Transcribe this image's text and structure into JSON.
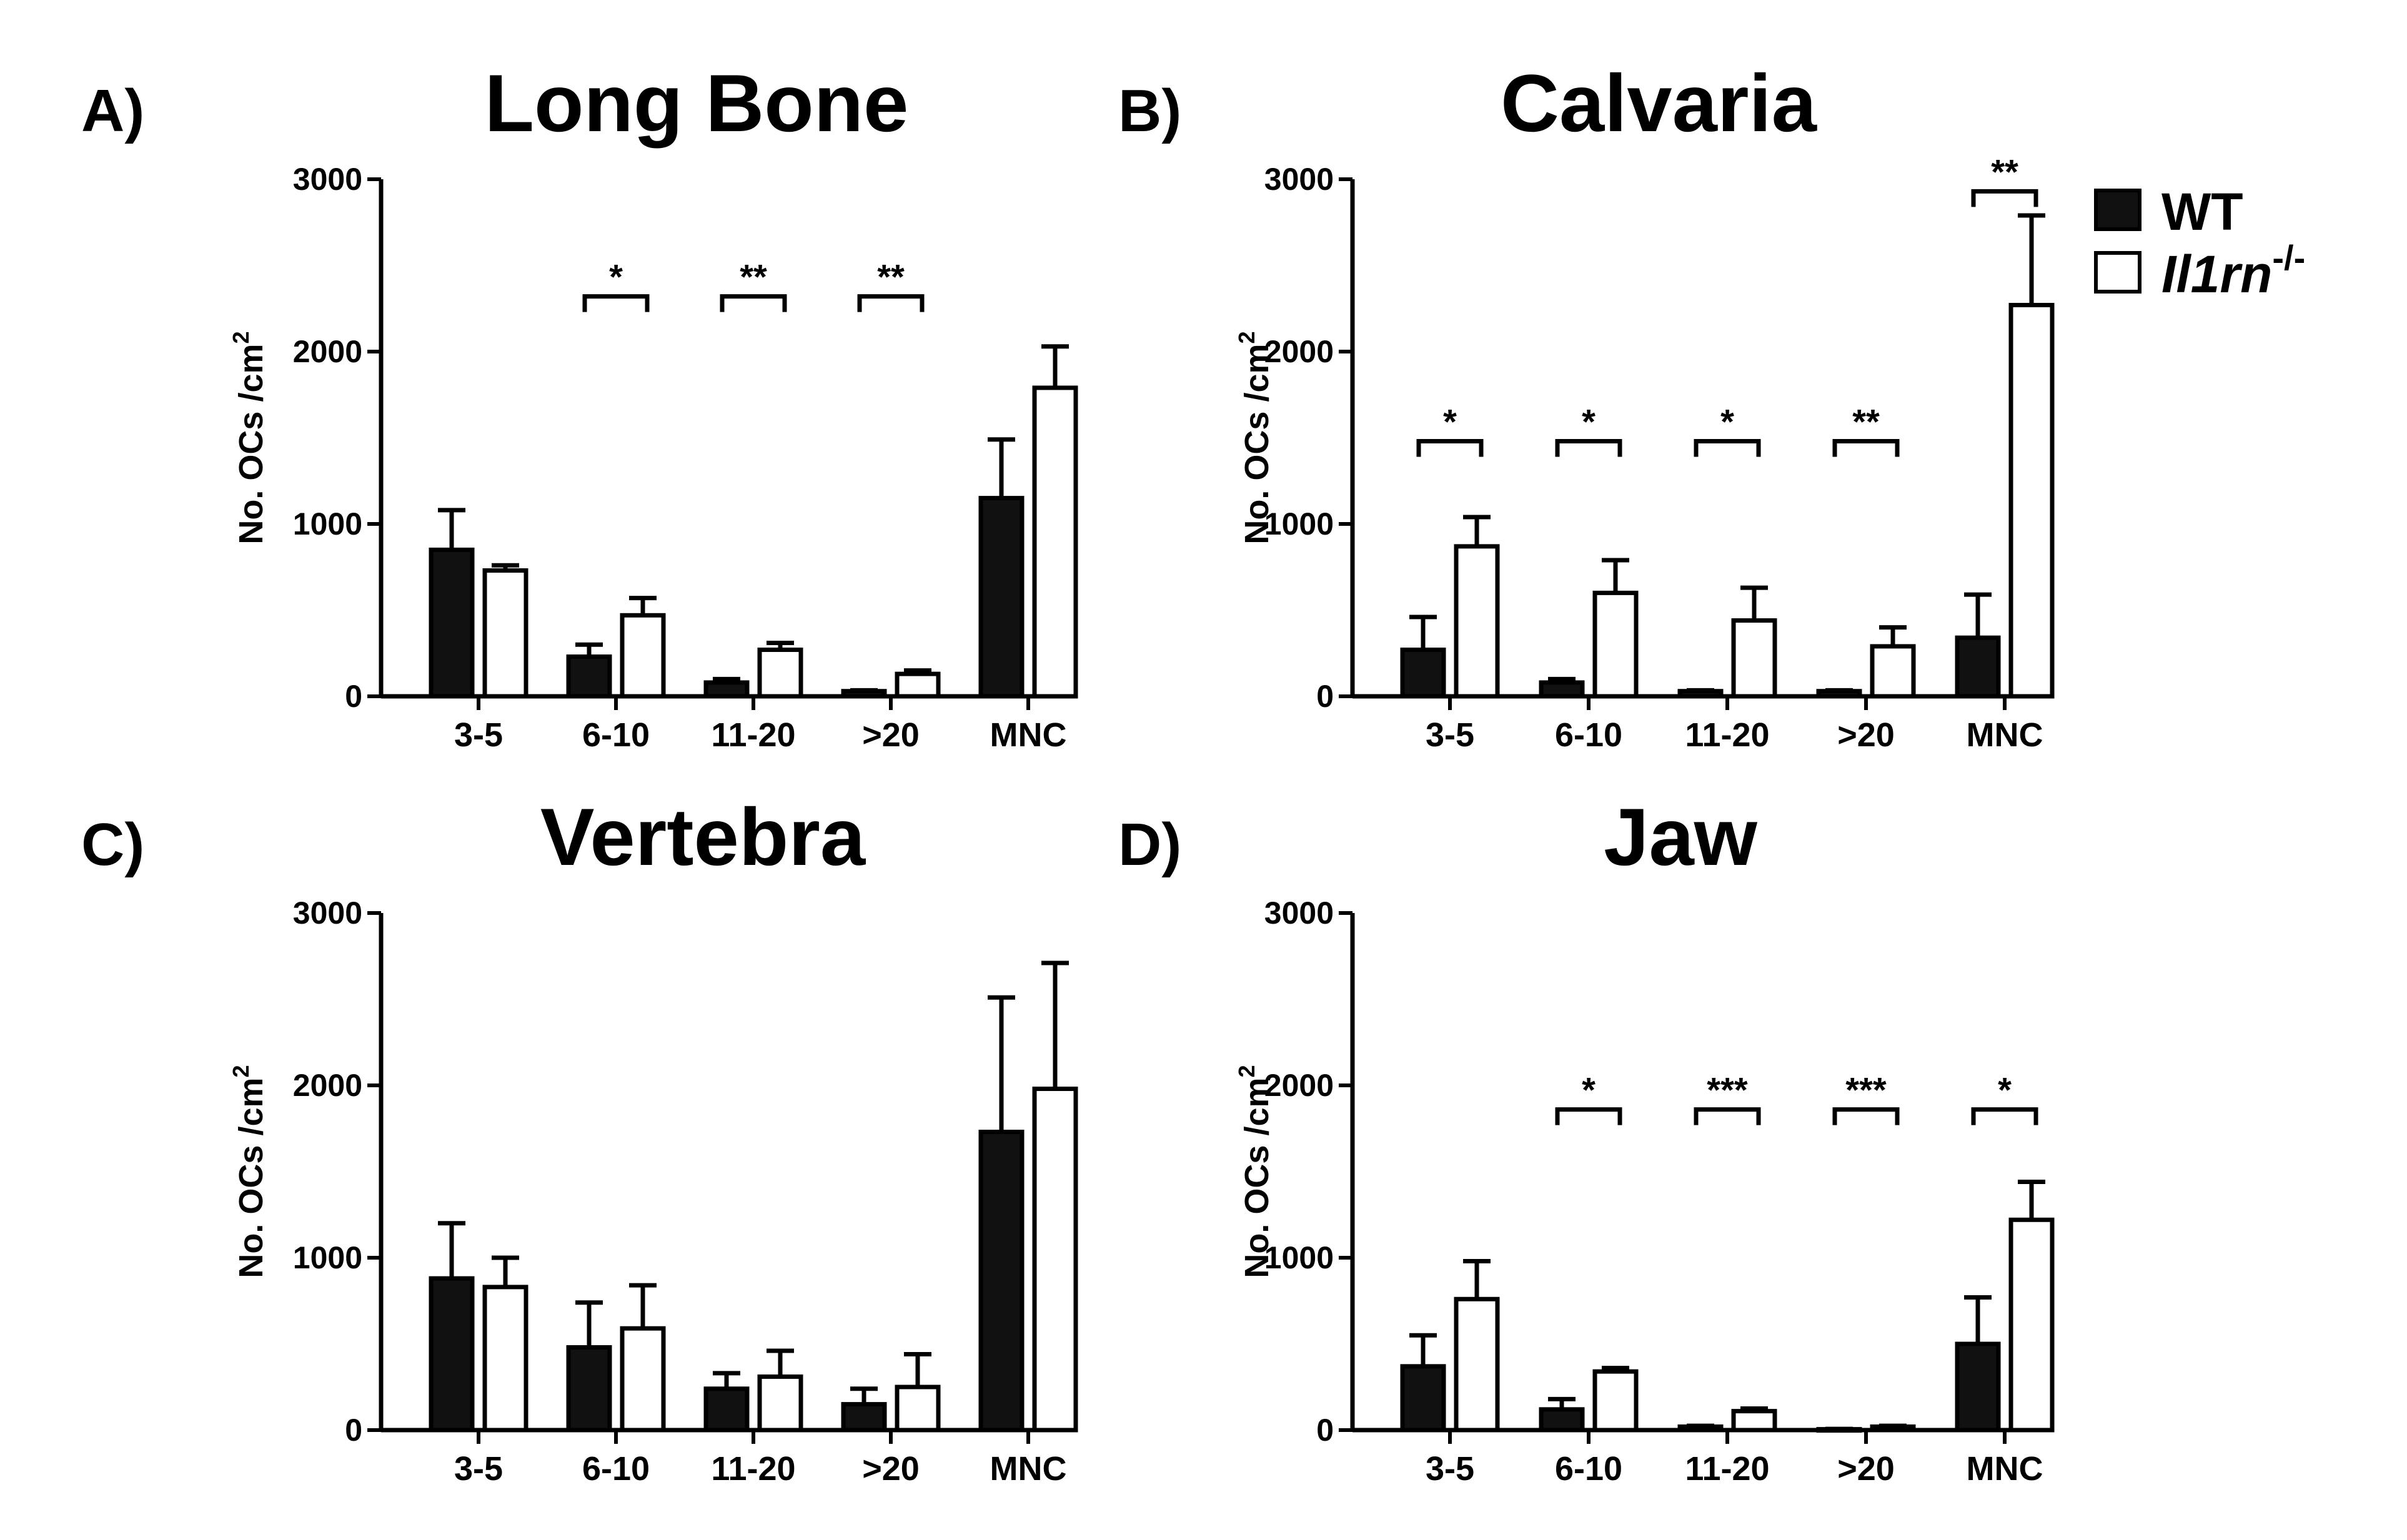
{
  "legend": {
    "wt_label": "WT",
    "ko_label": "Il1rn",
    "ko_sup": "-/-",
    "wt_color": "#111111",
    "ko_color": "#ffffff"
  },
  "chart_data": [
    {
      "type": "bar",
      "panel": "A)",
      "title": "Long Bone",
      "ylabel": "No. OCs /cm",
      "ylabel_sup": "2",
      "ylim": [
        0,
        3000
      ],
      "yticks": [
        "0",
        "1000",
        "2000",
        "3000"
      ],
      "categories": [
        "3-5",
        "6-10",
        "11-20",
        ">20",
        "MNC"
      ],
      "series": [
        {
          "name": "WT",
          "values": [
            850,
            230,
            80,
            30,
            1150
          ],
          "errors": [
            230,
            70,
            20,
            5,
            340
          ]
        },
        {
          "name": "Il1rn-/-",
          "values": [
            730,
            470,
            270,
            130,
            1790
          ],
          "errors": [
            30,
            100,
            40,
            20,
            240
          ]
        }
      ],
      "significance": [
        "",
        "*",
        "**",
        "**",
        ""
      ]
    },
    {
      "type": "bar",
      "panel": "B)",
      "title": "Calvaria",
      "ylabel": "No. OCs /cm",
      "ylabel_sup": "2",
      "ylim": [
        0,
        3000
      ],
      "yticks": [
        "0",
        "1000",
        "2000",
        "3000"
      ],
      "categories": [
        "3-5",
        "6-10",
        "11-20",
        ">20",
        "MNC"
      ],
      "series": [
        {
          "name": "WT",
          "values": [
            270,
            80,
            30,
            30,
            340
          ],
          "errors": [
            190,
            20,
            5,
            5,
            250
          ]
        },
        {
          "name": "Il1rn-/-",
          "values": [
            870,
            600,
            440,
            290,
            2270
          ],
          "errors": [
            170,
            190,
            190,
            110,
            520
          ]
        }
      ],
      "significance": [
        "*",
        "*",
        "*",
        "**",
        "**"
      ]
    },
    {
      "type": "bar",
      "panel": "C)",
      "title": "Vertebra",
      "ylabel": "No. OCs /cm",
      "ylabel_sup": "2",
      "ylim": [
        0,
        3000
      ],
      "yticks": [
        "0",
        "1000",
        "2000",
        "3000"
      ],
      "categories": [
        "3-5",
        "6-10",
        "11-20",
        ">20",
        "MNC"
      ],
      "series": [
        {
          "name": "WT",
          "values": [
            880,
            480,
            240,
            150,
            1730
          ],
          "errors": [
            320,
            260,
            90,
            90,
            780
          ]
        },
        {
          "name": "Il1rn-/-",
          "values": [
            830,
            590,
            310,
            250,
            1980
          ],
          "errors": [
            170,
            250,
            150,
            190,
            730
          ]
        }
      ],
      "significance": [
        "",
        "",
        "",
        "",
        ""
      ]
    },
    {
      "type": "bar",
      "panel": "D)",
      "title": "Jaw",
      "ylabel": "No. OCs /cm",
      "ylabel_sup": "2",
      "ylim": [
        0,
        3000
      ],
      "yticks": [
        "0",
        "1000",
        "2000",
        "3000"
      ],
      "categories": [
        "3-5",
        "6-10",
        "11-20",
        ">20",
        "MNC"
      ],
      "series": [
        {
          "name": "WT",
          "values": [
            370,
            120,
            20,
            5,
            500
          ],
          "errors": [
            180,
            60,
            5,
            2,
            270
          ]
        },
        {
          "name": "Il1rn-/-",
          "values": [
            760,
            340,
            110,
            20,
            1220
          ],
          "errors": [
            220,
            20,
            15,
            5,
            220
          ]
        }
      ],
      "significance": [
        "",
        "*",
        "***",
        "***",
        "*"
      ]
    }
  ]
}
